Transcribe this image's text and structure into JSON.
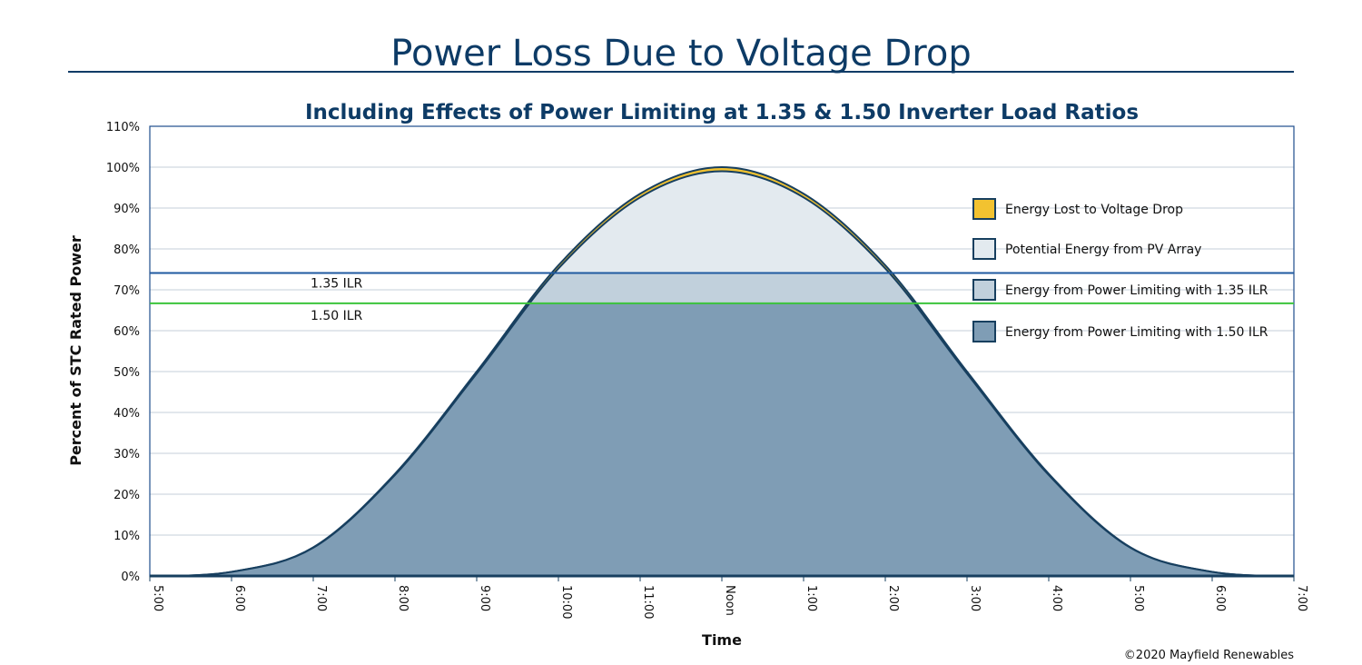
{
  "chart_data": {
    "type": "area",
    "title": "Power Loss Due to Voltage Drop",
    "subtitle": "Including Effects of Power Limiting at 1.35 & 1.50 Inverter Load Ratios",
    "xlabel": "Time",
    "ylabel": "Percent of STC Rated Power",
    "x_ticks": [
      "5:00",
      "6:00",
      "7:00",
      "8:00",
      "9:00",
      "10:00",
      "11:00",
      "Noon",
      "1:00",
      "2:00",
      "3:00",
      "4:00",
      "5:00",
      "6:00",
      "7:00"
    ],
    "y_ticks": [
      "0%",
      "10%",
      "20%",
      "30%",
      "40%",
      "50%",
      "60%",
      "70%",
      "80%",
      "90%",
      "100%",
      "110%"
    ],
    "ylim": [
      0,
      110
    ],
    "grid": true,
    "legend_position": "top-right",
    "series": [
      {
        "name": "Potential Energy from PV Array",
        "values": [
          0,
          1,
          7,
          25,
          50,
          76,
          93.5,
          100,
          93.5,
          76,
          50,
          25,
          7,
          1,
          0
        ],
        "color": "#e3eaef"
      },
      {
        "name": "Energy Lost to Voltage Drop",
        "note_values_after_loss": [
          0,
          1,
          6.9,
          24.7,
          49.5,
          75.2,
          92.6,
          99,
          92.6,
          75.2,
          49.5,
          24.7,
          6.9,
          1,
          0
        ],
        "color": "#f2c230"
      }
    ],
    "limits": [
      {
        "label": "1.35 ILR",
        "value": 74.1,
        "color": "#1f5aa0",
        "fill_name": "Energy from Power Limiting with 1.35 ILR",
        "fill_color": "#c1d0dc"
      },
      {
        "label": "1.50 ILR",
        "value": 66.7,
        "color": "#3cc43c",
        "fill_name": "Energy from Power Limiting with 1.50 ILR",
        "fill_color": "#7f9db5"
      }
    ],
    "legend": [
      {
        "label": "Energy Lost to Voltage Drop",
        "color": "#f2c230"
      },
      {
        "label": "Potential Energy from PV Array",
        "color": "#e3eaef"
      },
      {
        "label": "Energy from Power Limiting with 1.35 ILR",
        "color": "#c1d0dc"
      },
      {
        "label": "Energy from Power Limiting with 1.50 ILR",
        "color": "#7f9db5"
      }
    ]
  },
  "copyright": "©2020 Mayfield Renewables"
}
